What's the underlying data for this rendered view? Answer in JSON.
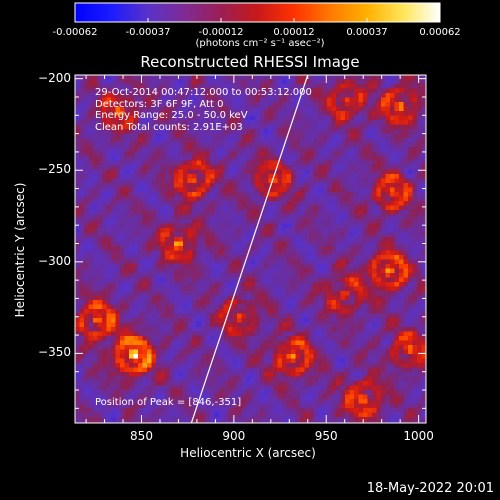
{
  "colorbar": {
    "units": "(photons cm⁻² s⁻¹ asec⁻²)",
    "ticks": [
      "-0.00062",
      "-0.00037",
      "-0.00012",
      "0.00012",
      "0.00037",
      "0.00062"
    ],
    "stops": [
      "#0000ff",
      "#1c1cff",
      "#5a32c8",
      "#7f2b94",
      "#9b1f55",
      "#c81919",
      "#ff3200",
      "#ff7a00",
      "#ffb000",
      "#ffe65a",
      "#ffffff"
    ]
  },
  "timestamp": "18-May-2022 20:01",
  "info": {
    "lines": [
      "29-Oct-2014 00:47:12.000 to 00:53:12.000",
      "Detectors: 3F 6F 9F, Att 0",
      "Energy Range: 25.0 - 50.0 keV",
      "Clean     Total counts: 2.91E+03"
    ],
    "peak": "Position of Peak = [846,-351]"
  },
  "chart_data": {
    "type": "heatmap",
    "title": "Reconstructed RHESSI Image",
    "xlabel": "Heliocentric X (arcsec)",
    "ylabel": "Heliocentric Y (arcsec)",
    "xlim": [
      814,
      1004
    ],
    "ylim": [
      -388,
      -198
    ],
    "xticks": [
      850,
      900,
      950,
      1000
    ],
    "yticks": [
      -200,
      -250,
      -300,
      -350
    ],
    "xtick_labels": [
      "850",
      "900",
      "950",
      "1000"
    ],
    "ytick_labels": [
      "−200",
      "−250",
      "−300",
      "−350"
    ],
    "value_range": [
      -0.00062,
      0.00062
    ],
    "peak_position": [
      846,
      -351
    ],
    "limb_line": [
      [
        877,
        -388
      ],
      [
        940,
        -198
      ]
    ],
    "bright_sources": [
      {
        "x": 846,
        "y": -351,
        "value": 0.00062
      },
      {
        "x": 826,
        "y": -332,
        "value": 0.00045
      },
      {
        "x": 870,
        "y": -290,
        "value": 0.00035
      },
      {
        "x": 878,
        "y": -255,
        "value": 0.0004
      },
      {
        "x": 921,
        "y": -255,
        "value": 0.0003
      },
      {
        "x": 932,
        "y": -352,
        "value": 0.00042
      },
      {
        "x": 984,
        "y": -305,
        "value": 0.00045
      },
      {
        "x": 986,
        "y": -262,
        "value": 0.00035
      },
      {
        "x": 990,
        "y": -215,
        "value": 0.00038
      },
      {
        "x": 961,
        "y": -212,
        "value": 0.0003
      },
      {
        "x": 970,
        "y": -375,
        "value": 0.0004
      },
      {
        "x": 903,
        "y": -330,
        "value": 0.00025
      },
      {
        "x": 838,
        "y": -218,
        "value": 0.0003
      },
      {
        "x": 960,
        "y": -318,
        "value": 0.00028
      },
      {
        "x": 995,
        "y": -348,
        "value": 0.00032
      }
    ]
  }
}
